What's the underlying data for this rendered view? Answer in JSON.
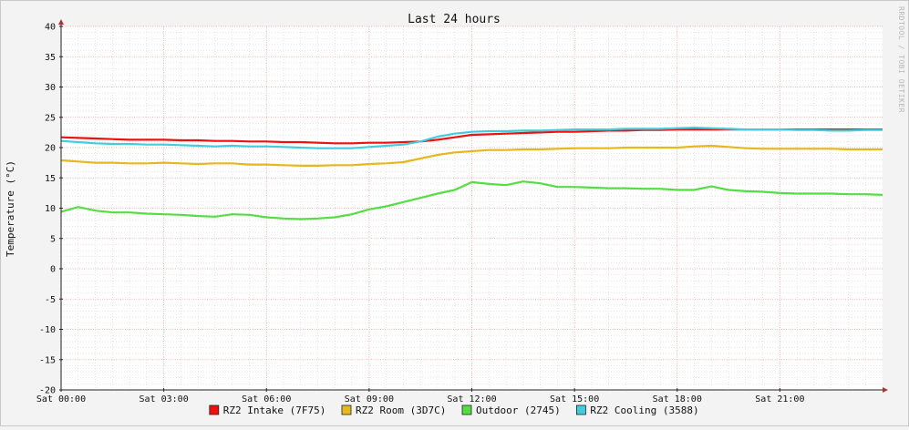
{
  "chart_data": {
    "type": "line",
    "title": "Last 24 hours",
    "ylabel": "Temperature (°C)",
    "xlabel": "",
    "watermark": "RRDTOOL / TOBI OETIKER",
    "ylim": [
      -20,
      40
    ],
    "y_ticks": [
      -20,
      -15,
      -10,
      -5,
      0,
      5,
      10,
      15,
      20,
      25,
      30,
      35,
      40
    ],
    "x_range_hours": [
      0,
      24
    ],
    "x_ticks": [
      {
        "hour": 0,
        "label": "Sat 00:00"
      },
      {
        "hour": 3,
        "label": "Sat 03:00"
      },
      {
        "hour": 6,
        "label": "Sat 06:00"
      },
      {
        "hour": 9,
        "label": "Sat 09:00"
      },
      {
        "hour": 12,
        "label": "Sat 12:00"
      },
      {
        "hour": 15,
        "label": "Sat 15:00"
      },
      {
        "hour": 18,
        "label": "Sat 18:00"
      },
      {
        "hour": 21,
        "label": "Sat 21:00"
      }
    ],
    "grid": true,
    "legend_position": "bottom",
    "x": [
      0,
      0.5,
      1,
      1.5,
      2,
      2.5,
      3,
      3.5,
      4,
      4.5,
      5,
      5.5,
      6,
      6.5,
      7,
      7.5,
      8,
      8.5,
      9,
      9.5,
      10,
      10.5,
      11,
      11.5,
      12,
      12.5,
      13,
      13.5,
      14,
      14.5,
      15,
      15.5,
      16,
      16.5,
      17,
      17.5,
      18,
      18.5,
      19,
      19.5,
      20,
      20.5,
      21,
      21.5,
      22,
      22.5,
      23,
      23.5,
      24
    ],
    "series": [
      {
        "name": "RZ2 Intake (7F75)",
        "color": "#ee1111",
        "values": [
          21.7,
          21.6,
          21.5,
          21.4,
          21.3,
          21.3,
          21.3,
          21.2,
          21.2,
          21.1,
          21.1,
          21.0,
          21.0,
          20.9,
          20.9,
          20.8,
          20.7,
          20.7,
          20.8,
          20.8,
          20.9,
          21.0,
          21.3,
          21.7,
          22.1,
          22.2,
          22.3,
          22.4,
          22.5,
          22.6,
          22.6,
          22.7,
          22.8,
          22.8,
          22.9,
          22.9,
          23.0,
          23.0,
          23.0,
          23.0,
          23.0,
          23.0,
          23.0,
          23.0,
          23.0,
          23.0,
          23.0,
          23.0,
          23.0
        ]
      },
      {
        "name": "RZ2 Room (3D7C)",
        "color": "#e6b820",
        "values": [
          17.9,
          17.7,
          17.5,
          17.5,
          17.4,
          17.4,
          17.5,
          17.4,
          17.3,
          17.4,
          17.4,
          17.2,
          17.2,
          17.1,
          17.0,
          17.0,
          17.1,
          17.1,
          17.3,
          17.4,
          17.6,
          18.2,
          18.8,
          19.2,
          19.4,
          19.6,
          19.6,
          19.7,
          19.7,
          19.8,
          19.9,
          19.9,
          19.9,
          20.0,
          20.0,
          20.0,
          20.0,
          20.2,
          20.3,
          20.1,
          19.9,
          19.8,
          19.8,
          19.8,
          19.8,
          19.8,
          19.7,
          19.7,
          19.7
        ]
      },
      {
        "name": "Outdoor (2745)",
        "color": "#55dd44",
        "values": [
          9.4,
          10.2,
          9.6,
          9.3,
          9.3,
          9.1,
          9.0,
          8.9,
          8.7,
          8.6,
          9.0,
          8.9,
          8.5,
          8.3,
          8.2,
          8.3,
          8.5,
          9.0,
          9.8,
          10.3,
          11.0,
          11.7,
          12.4,
          13.0,
          14.3,
          14.0,
          13.8,
          14.4,
          14.1,
          13.5,
          13.5,
          13.4,
          13.3,
          13.3,
          13.2,
          13.2,
          13.0,
          13.0,
          13.6,
          13.0,
          12.8,
          12.7,
          12.5,
          12.4,
          12.4,
          12.4,
          12.3,
          12.3,
          12.2
        ]
      },
      {
        "name": "RZ2 Cooling (3588)",
        "color": "#44ccdd",
        "values": [
          21.1,
          20.9,
          20.7,
          20.6,
          20.6,
          20.5,
          20.5,
          20.4,
          20.3,
          20.2,
          20.3,
          20.2,
          20.2,
          20.1,
          20.0,
          19.9,
          19.9,
          19.9,
          20.1,
          20.3,
          20.5,
          21.0,
          21.8,
          22.3,
          22.6,
          22.7,
          22.7,
          22.8,
          22.8,
          22.9,
          23.0,
          23.0,
          23.0,
          23.1,
          23.1,
          23.1,
          23.2,
          23.3,
          23.2,
          23.1,
          23.0,
          23.0,
          23.0,
          22.9,
          22.9,
          22.8,
          22.8,
          22.9,
          22.9
        ]
      }
    ]
  }
}
